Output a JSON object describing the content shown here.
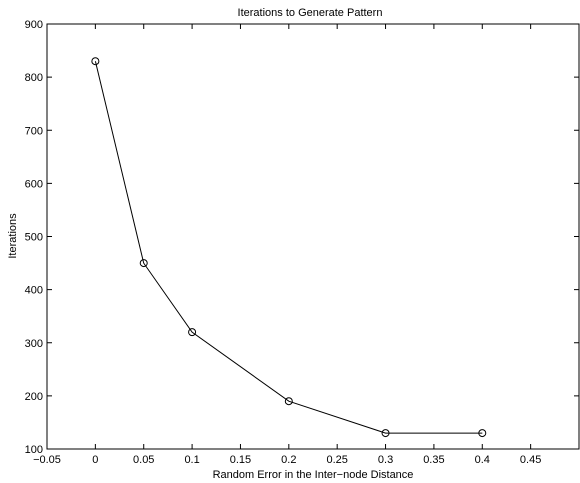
{
  "chart_data": {
    "type": "line",
    "title": "Iterations to Generate Pattern",
    "xlabel": "Random Error in the Inter−node Distance",
    "ylabel": "Iterations",
    "xlim": [
      -0.05,
      0.5
    ],
    "ylim": [
      100,
      900
    ],
    "xticks": [
      -0.05,
      0,
      0.05,
      0.1,
      0.15,
      0.2,
      0.25,
      0.3,
      0.35,
      0.4,
      0.45
    ],
    "xtick_labels": [
      "−0.05",
      "0",
      "0.05",
      "0.1",
      "0.15",
      "0.2",
      "0.25",
      "0.3",
      "0.35",
      "0.4",
      "0.45"
    ],
    "yticks": [
      100,
      200,
      300,
      400,
      500,
      600,
      700,
      800,
      900
    ],
    "ytick_labels": [
      "100",
      "200",
      "300",
      "400",
      "500",
      "600",
      "700",
      "800",
      "900"
    ],
    "grid": false,
    "series": [
      {
        "marker": "circle",
        "color": "#000000",
        "x": [
          0,
          0.05,
          0.1,
          0.2,
          0.3,
          0.4
        ],
        "y": [
          830,
          450,
          320,
          190,
          130,
          130
        ]
      }
    ]
  }
}
